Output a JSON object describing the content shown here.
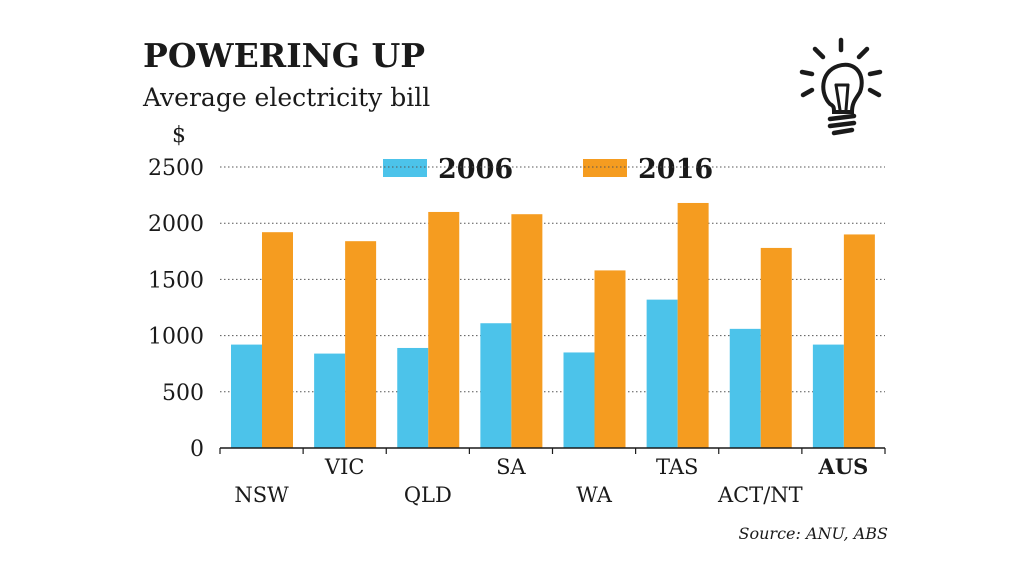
{
  "chart_data": {
    "type": "bar",
    "title": "POWERING UP",
    "subtitle": "Average electricity bill",
    "ylabel": "$",
    "xlabel": "",
    "ylim": [
      0,
      2500
    ],
    "yticks": [
      0,
      500,
      1000,
      1500,
      2000,
      2500
    ],
    "grid": true,
    "legend_position": "top",
    "categories": [
      "NSW",
      "VIC",
      "QLD",
      "SA",
      "WA",
      "TAS",
      "ACT/NT",
      "AUS"
    ],
    "highlight_category": "AUS",
    "series": [
      {
        "name": "2006",
        "color": "#4cc3ea",
        "values": [
          920,
          840,
          890,
          1110,
          850,
          1320,
          1060,
          920
        ]
      },
      {
        "name": "2016",
        "color": "#f59c20",
        "values": [
          1920,
          1840,
          2100,
          2080,
          1580,
          2180,
          1780,
          1900
        ]
      }
    ],
    "source": "Source: ANU, ABS"
  },
  "icon": "lightbulb-icon"
}
